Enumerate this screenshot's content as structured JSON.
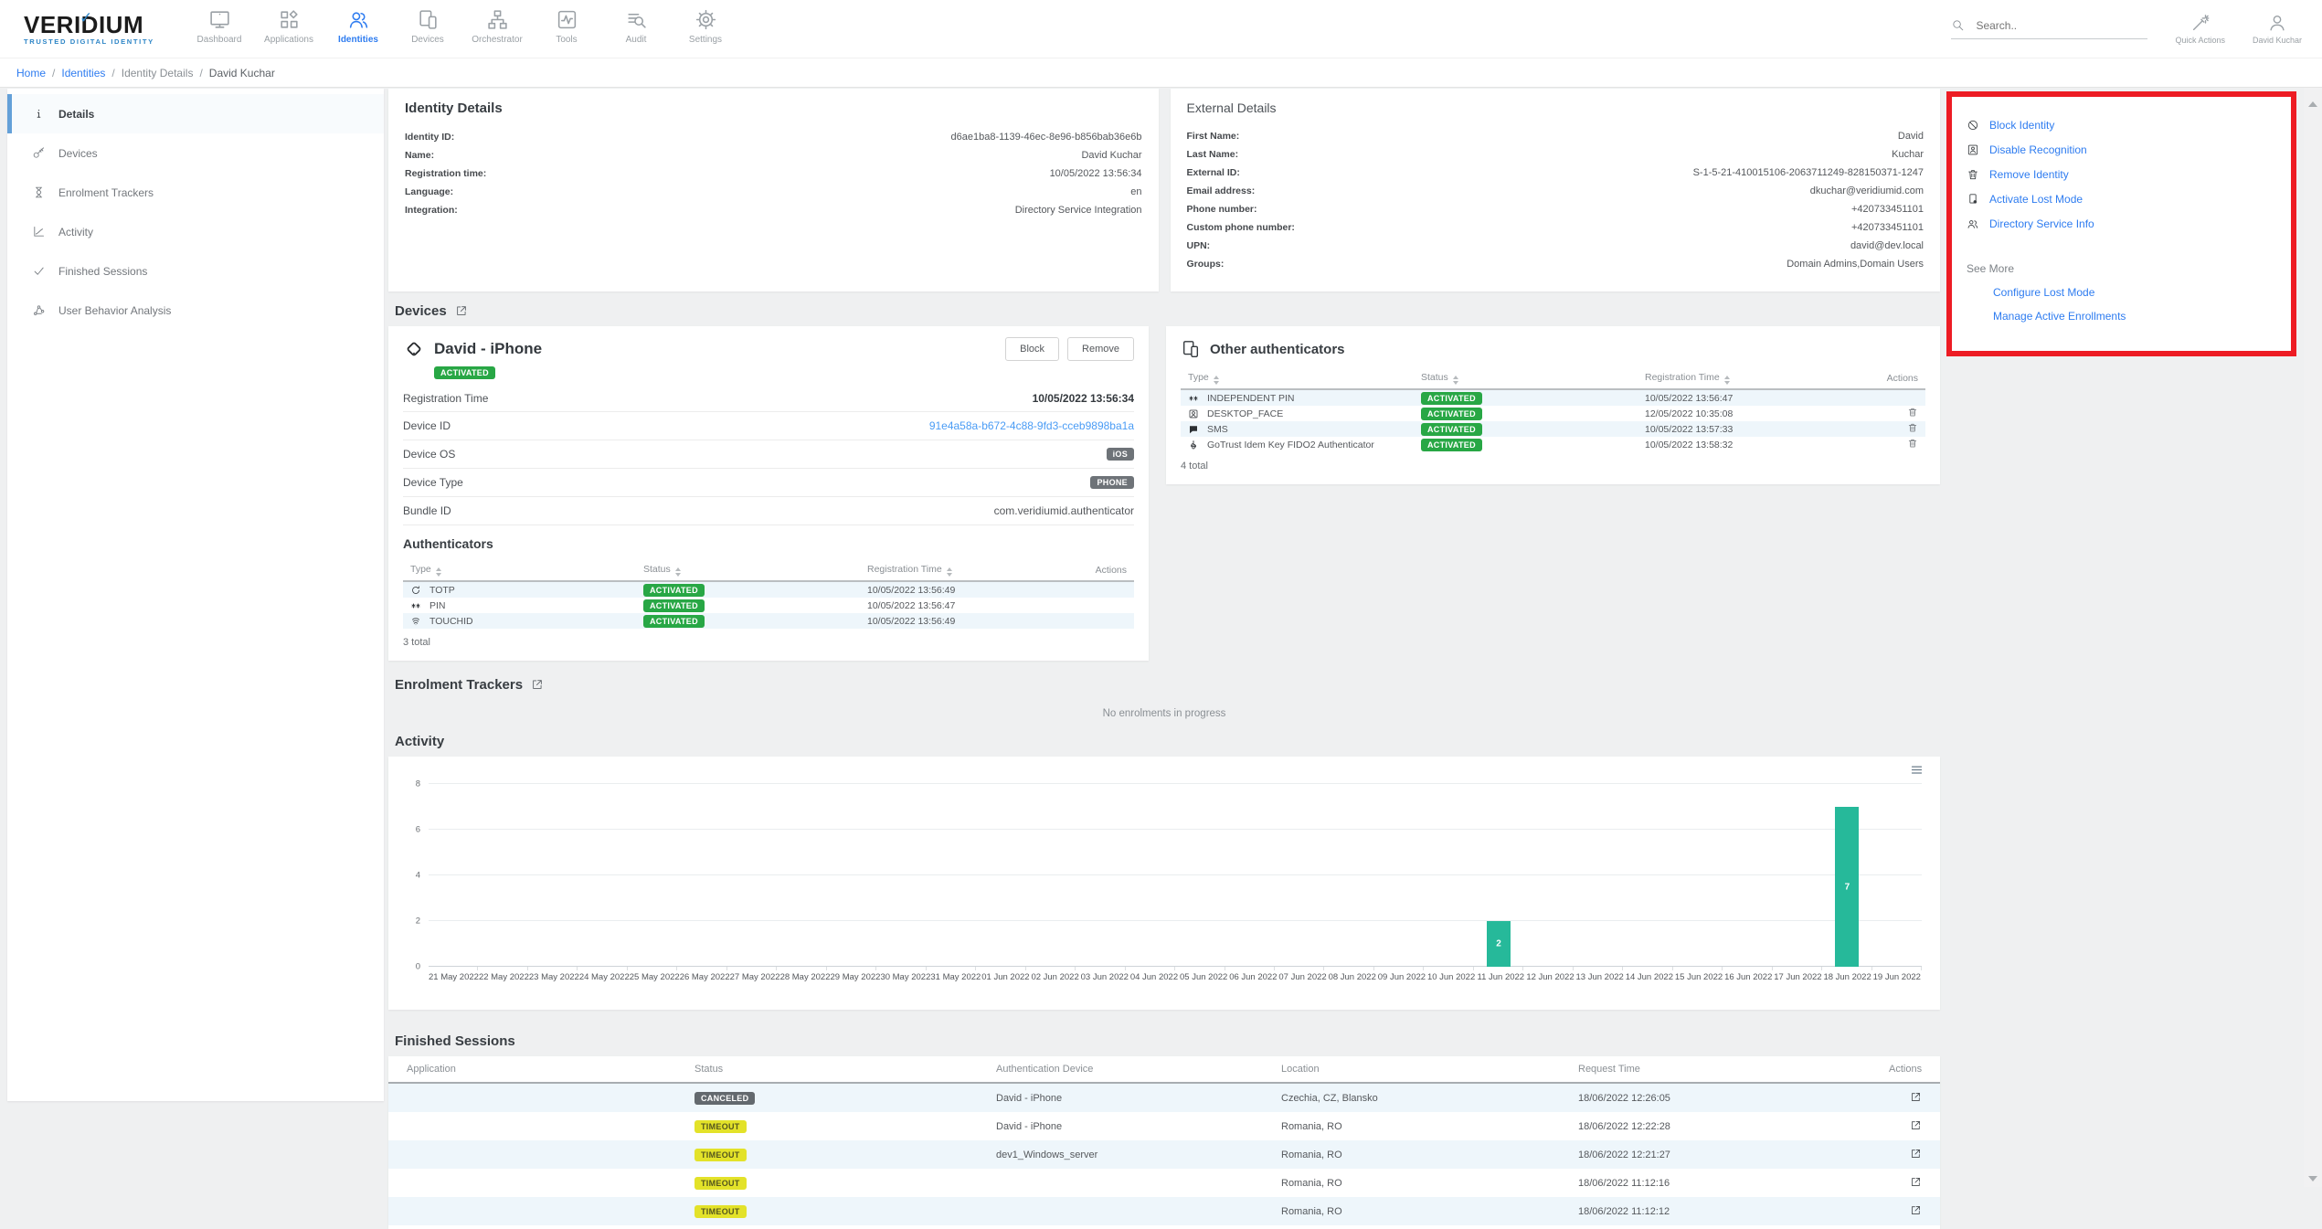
{
  "colors": {
    "accent_blue": "#2e7cf0",
    "active_green": "#28a745",
    "chart_teal": "#26b99a",
    "timeout_yellow": "#e3e229",
    "canceled_gray": "#63696e",
    "annotation_red": "#ed1c24"
  },
  "header": {
    "logo": {
      "brand": "VERIDIUM",
      "tagline": "TRUSTED DIGITAL IDENTITY"
    },
    "nav": [
      {
        "label": "Dashboard",
        "icon": "monitor-icon",
        "active": false
      },
      {
        "label": "Applications",
        "icon": "applications-icon",
        "active": false
      },
      {
        "label": "Identities",
        "icon": "identities-icon",
        "active": true
      },
      {
        "label": "Devices",
        "icon": "devices-icon",
        "active": false
      },
      {
        "label": "Orchestrator",
        "icon": "orchestrator-icon",
        "active": false
      },
      {
        "label": "Tools",
        "icon": "tools-icon",
        "active": false
      },
      {
        "label": "Audit",
        "icon": "audit-icon",
        "active": false
      },
      {
        "label": "Settings",
        "icon": "settings-icon",
        "active": false
      }
    ],
    "search": {
      "placeholder": "Search..",
      "icon": "search-icon"
    },
    "quick_actions": {
      "label": "Quick Actions",
      "icon": "wand-icon"
    },
    "user": {
      "label": "David Kuchar",
      "icon": "user-icon"
    }
  },
  "breadcrumb": [
    {
      "label": "Home",
      "style": "link"
    },
    {
      "label": "Identities",
      "style": "link"
    },
    {
      "label": "Identity Details",
      "style": "muted"
    },
    {
      "label": "David Kuchar",
      "style": "current"
    }
  ],
  "sidebar": [
    {
      "label": "Details",
      "icon": "info-icon",
      "active": true
    },
    {
      "label": "Devices",
      "icon": "key-icon",
      "active": false
    },
    {
      "label": "Enrolment Trackers",
      "icon": "hourglass-icon",
      "active": false
    },
    {
      "label": "Activity",
      "icon": "activity-icon",
      "active": false
    },
    {
      "label": "Finished Sessions",
      "icon": "check-icon",
      "active": false
    },
    {
      "label": "User Behavior Analysis",
      "icon": "behavior-icon",
      "active": false
    }
  ],
  "identity_details": {
    "title": "Identity Details",
    "fields": [
      {
        "label": "Identity ID:",
        "value": "d6ae1ba8-1139-46ec-8e96-b856bab36e6b"
      },
      {
        "label": "Name:",
        "value": "David Kuchar"
      },
      {
        "label": "Registration time:",
        "value": "10/05/2022 13:56:34"
      },
      {
        "label": "Language:",
        "value": "en"
      },
      {
        "label": "Integration:",
        "value": "Directory Service Integration"
      }
    ]
  },
  "external_details": {
    "title": "External Details",
    "fields": [
      {
        "label": "First Name:",
        "value": "David"
      },
      {
        "label": "Last Name:",
        "value": "Kuchar"
      },
      {
        "label": "External ID:",
        "value": "S-1-5-21-410015106-2063711249-828150371-1247"
      },
      {
        "label": "Email address:",
        "value": "dkuchar@veridiumid.com"
      },
      {
        "label": "Phone number:",
        "value": "+420733451101"
      },
      {
        "label": "Custom phone number:",
        "value": "+420733451101"
      },
      {
        "label": "UPN:",
        "value": "david@dev.local"
      },
      {
        "label": "Groups:",
        "value": "Domain Admins,Domain Users"
      }
    ]
  },
  "actions_panel": {
    "links": [
      {
        "label": "Block Identity",
        "icon": "block-icon"
      },
      {
        "label": "Disable Recognition",
        "icon": "recognition-icon"
      },
      {
        "label": "Remove Identity",
        "icon": "trash-icon"
      },
      {
        "label": "Activate Lost Mode",
        "icon": "lostmode-icon"
      },
      {
        "label": "Directory Service Info",
        "icon": "directory-icon"
      }
    ],
    "see_more_label": "See More",
    "more_links": [
      "Configure Lost Mode",
      "Manage Active Enrollments"
    ]
  },
  "devices_section": {
    "title": "Devices",
    "device": {
      "icon": "phone-rotated-icon",
      "name": "David - iPhone",
      "status": "ACTIVATED",
      "buttons": {
        "block": "Block",
        "remove": "Remove"
      },
      "fields": [
        {
          "label": "Registration Time",
          "value": "10/05/2022 13:56:34",
          "style": "bold"
        },
        {
          "label": "Device ID",
          "value": "91e4a58a-b672-4c88-9fd3-cceb9898ba1a",
          "style": "link"
        },
        {
          "label": "Device OS",
          "value": "iOS",
          "style": "badge"
        },
        {
          "label": "Device Type",
          "value": "PHONE",
          "style": "badge"
        },
        {
          "label": "Bundle ID",
          "value": "com.veridiumid.authenticator",
          "style": "text"
        }
      ],
      "authenticators": {
        "title": "Authenticators",
        "columns": [
          "Type",
          "Status",
          "Registration Time",
          "Actions"
        ],
        "rows": [
          {
            "type": "TOTP",
            "icon": "totp-icon",
            "status": "ACTIVATED",
            "registration_time": "10/05/2022 13:56:49",
            "deletable": false
          },
          {
            "type": "PIN",
            "icon": "pin-icon",
            "status": "ACTIVATED",
            "registration_time": "10/05/2022 13:56:47",
            "deletable": false
          },
          {
            "type": "TOUCHID",
            "icon": "touchid-icon",
            "status": "ACTIVATED",
            "registration_time": "10/05/2022 13:56:49",
            "deletable": false
          }
        ],
        "total": "3 total"
      }
    }
  },
  "other_authenticators": {
    "title": "Other authenticators",
    "icon": "devices-icon",
    "columns": [
      "Type",
      "Status",
      "Registration Time",
      "Actions"
    ],
    "rows": [
      {
        "type": "INDEPENDENT PIN",
        "icon": "pin-icon",
        "status": "ACTIVATED",
        "registration_time": "10/05/2022 13:56:47",
        "deletable": false
      },
      {
        "type": "DESKTOP_FACE",
        "icon": "face-icon",
        "status": "ACTIVATED",
        "registration_time": "12/05/2022 10:35:08",
        "deletable": true
      },
      {
        "type": "SMS",
        "icon": "sms-icon",
        "status": "ACTIVATED",
        "registration_time": "10/05/2022 13:57:33",
        "deletable": true
      },
      {
        "type": "GoTrust Idem Key FIDO2 Authenticator",
        "icon": "fido2-icon",
        "status": "ACTIVATED",
        "registration_time": "10/05/2022 13:58:32",
        "deletable": true
      }
    ],
    "total": "4 total"
  },
  "enrolment_trackers": {
    "title": "Enrolment Trackers",
    "empty_message": "No enrolments in progress"
  },
  "activity": {
    "title": "Activity",
    "chart_data": {
      "type": "bar",
      "title": "Activity",
      "xlabel": "",
      "ylabel": "",
      "categories": [
        "21 May 2022",
        "22 May 2022",
        "23 May 2022",
        "24 May 2022",
        "25 May 2022",
        "26 May 2022",
        "27 May 2022",
        "28 May 2022",
        "29 May 2022",
        "30 May 2022",
        "31 May 2022",
        "01 Jun 2022",
        "02 Jun 2022",
        "03 Jun 2022",
        "04 Jun 2022",
        "05 Jun 2022",
        "06 Jun 2022",
        "07 Jun 2022",
        "08 Jun 2022",
        "09 Jun 2022",
        "10 Jun 2022",
        "11 Jun 2022",
        "12 Jun 2022",
        "13 Jun 2022",
        "14 Jun 2022",
        "15 Jun 2022",
        "16 Jun 2022",
        "17 Jun 2022",
        "18 Jun 2022",
        "19 Jun 2022"
      ],
      "values": [
        0,
        0,
        0,
        0,
        0,
        0,
        0,
        0,
        0,
        0,
        0,
        0,
        0,
        0,
        0,
        0,
        0,
        0,
        0,
        0,
        0,
        2,
        0,
        0,
        0,
        0,
        0,
        0,
        7,
        0
      ],
      "ylim": [
        0,
        8
      ],
      "yticks": [
        0,
        2,
        4,
        6,
        8
      ],
      "bar_color": "#26b99a",
      "grid": true,
      "legend": false,
      "data_labels": true
    }
  },
  "finished_sessions": {
    "title": "Finished Sessions",
    "columns": [
      "Application",
      "Status",
      "Authentication Device",
      "Location",
      "Request Time",
      "Actions"
    ],
    "rows": [
      {
        "application": "",
        "status": "CANCELED",
        "status_style": "canceled",
        "device": "David - iPhone",
        "location": "Czechia, CZ, Blansko",
        "request_time": "18/06/2022 12:26:05"
      },
      {
        "application": "",
        "status": "TIMEOUT",
        "status_style": "timeout",
        "device": "David - iPhone",
        "location": "Romania, RO",
        "request_time": "18/06/2022 12:22:28"
      },
      {
        "application": "",
        "status": "TIMEOUT",
        "status_style": "timeout",
        "device": "dev1_Windows_server",
        "location": "Romania, RO",
        "request_time": "18/06/2022 12:21:27"
      },
      {
        "application": "",
        "status": "TIMEOUT",
        "status_style": "timeout",
        "device": "",
        "location": "Romania, RO",
        "request_time": "18/06/2022 11:12:16"
      },
      {
        "application": "",
        "status": "TIMEOUT",
        "status_style": "timeout",
        "device": "",
        "location": "Romania, RO",
        "request_time": "18/06/2022 11:12:12"
      }
    ]
  }
}
